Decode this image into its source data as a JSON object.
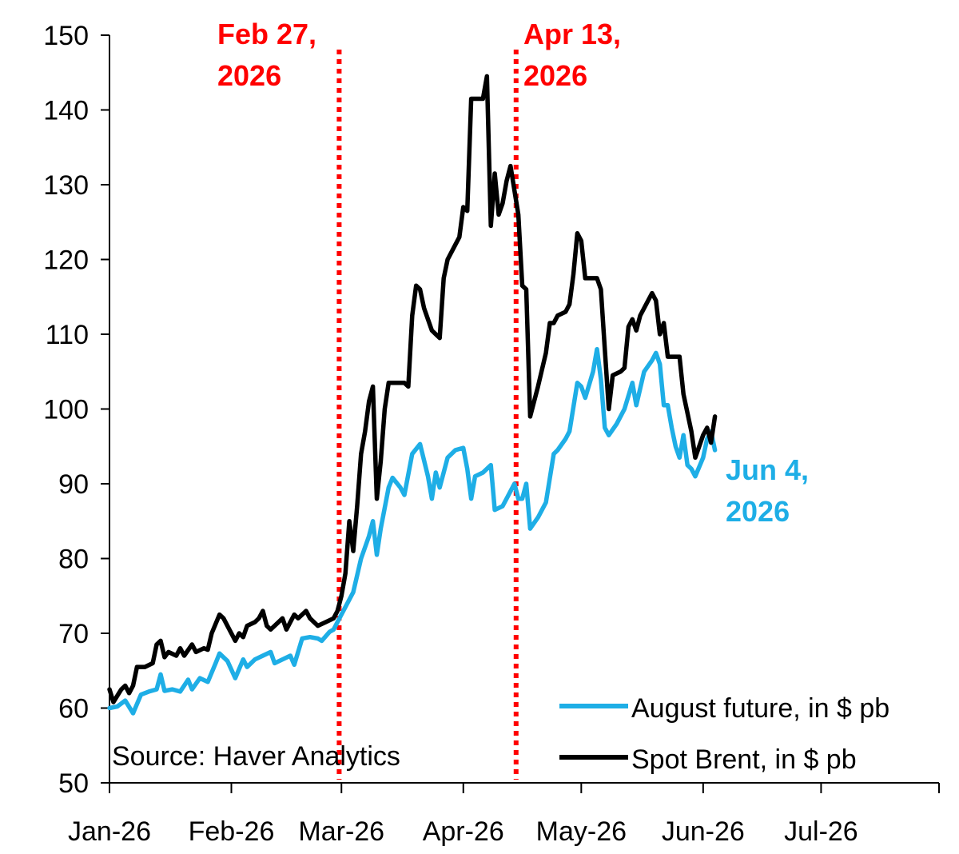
{
  "chart_data": {
    "type": "line",
    "title": "",
    "xlabel": "",
    "ylabel": "",
    "ylim": [
      50,
      150
    ],
    "yticks": [
      50,
      60,
      70,
      80,
      90,
      100,
      110,
      120,
      130,
      140,
      150
    ],
    "xlim": [
      "2026-01-01",
      "2026-07-31"
    ],
    "xticks": [
      {
        "date": "2026-01-01",
        "label": "Jan-26"
      },
      {
        "date": "2026-02-01",
        "label": "Feb-26"
      },
      {
        "date": "2026-03-01",
        "label": "Mar-26"
      },
      {
        "date": "2026-04-01",
        "label": "Apr-26"
      },
      {
        "date": "2026-05-01",
        "label": "May-26"
      },
      {
        "date": "2026-06-01",
        "label": "Jun-26"
      },
      {
        "date": "2026-07-01",
        "label": "Jul-26"
      },
      {
        "date": "2026-07-31",
        "label": ""
      }
    ],
    "grid": false,
    "legend_position": "bottom-right",
    "series": [
      {
        "name": "August future, in $ pb",
        "color": "#1EAEE6",
        "points": [
          [
            "2026-01-01",
            60.0
          ],
          [
            "2026-01-03",
            60.2
          ],
          [
            "2026-01-05",
            61.0
          ],
          [
            "2026-01-07",
            59.3
          ],
          [
            "2026-01-09",
            61.8
          ],
          [
            "2026-01-11",
            62.2
          ],
          [
            "2026-01-13",
            62.5
          ],
          [
            "2026-01-14",
            64.5
          ],
          [
            "2026-01-15",
            62.3
          ],
          [
            "2026-01-17",
            62.5
          ],
          [
            "2026-01-19",
            62.2
          ],
          [
            "2026-01-21",
            63.8
          ],
          [
            "2026-01-22",
            62.5
          ],
          [
            "2026-01-24",
            64.0
          ],
          [
            "2026-01-26",
            63.5
          ],
          [
            "2026-01-28",
            66.0
          ],
          [
            "2026-01-29",
            67.3
          ],
          [
            "2026-01-31",
            66.3
          ],
          [
            "2026-02-02",
            64.0
          ],
          [
            "2026-02-04",
            66.5
          ],
          [
            "2026-02-05",
            65.5
          ],
          [
            "2026-02-07",
            66.5
          ],
          [
            "2026-02-09",
            67.0
          ],
          [
            "2026-02-11",
            67.5
          ],
          [
            "2026-02-12",
            66.0
          ],
          [
            "2026-02-14",
            66.5
          ],
          [
            "2026-02-16",
            67.0
          ],
          [
            "2026-02-17",
            65.8
          ],
          [
            "2026-02-19",
            69.3
          ],
          [
            "2026-02-21",
            69.5
          ],
          [
            "2026-02-23",
            69.3
          ],
          [
            "2026-02-24",
            69.0
          ],
          [
            "2026-02-26",
            70.2
          ],
          [
            "2026-02-27",
            70.5
          ],
          [
            "2026-03-01",
            72.5
          ],
          [
            "2026-03-03",
            74.5
          ],
          [
            "2026-03-04",
            75.5
          ],
          [
            "2026-03-06",
            80.0
          ],
          [
            "2026-03-08",
            83.0
          ],
          [
            "2026-03-09",
            85.0
          ],
          [
            "2026-03-10",
            80.5
          ],
          [
            "2026-03-11",
            84.0
          ],
          [
            "2026-03-13",
            89.5
          ],
          [
            "2026-03-14",
            90.8
          ],
          [
            "2026-03-16",
            89.5
          ],
          [
            "2026-03-17",
            88.5
          ],
          [
            "2026-03-19",
            94.0
          ],
          [
            "2026-03-21",
            95.3
          ],
          [
            "2026-03-23",
            91.0
          ],
          [
            "2026-03-24",
            88.0
          ],
          [
            "2026-03-25",
            91.5
          ],
          [
            "2026-03-26",
            89.5
          ],
          [
            "2026-03-28",
            93.5
          ],
          [
            "2026-03-30",
            94.5
          ],
          [
            "2026-04-01",
            94.8
          ],
          [
            "2026-04-02",
            92.0
          ],
          [
            "2026-04-03",
            88.0
          ],
          [
            "2026-04-04",
            91.0
          ],
          [
            "2026-04-06",
            91.5
          ],
          [
            "2026-04-08",
            92.5
          ],
          [
            "2026-04-09",
            86.5
          ],
          [
            "2026-04-11",
            87.0
          ],
          [
            "2026-04-13",
            89.0
          ],
          [
            "2026-04-14",
            90.0
          ],
          [
            "2026-04-15",
            88.0
          ],
          [
            "2026-04-16",
            88.0
          ],
          [
            "2026-04-17",
            90.0
          ],
          [
            "2026-04-18",
            84.0
          ],
          [
            "2026-04-20",
            85.5
          ],
          [
            "2026-04-22",
            87.5
          ],
          [
            "2026-04-24",
            94.0
          ],
          [
            "2026-04-25",
            94.5
          ],
          [
            "2026-04-27",
            96.0
          ],
          [
            "2026-04-28",
            97.0
          ],
          [
            "2026-04-30",
            103.5
          ],
          [
            "2026-05-01",
            103.0
          ],
          [
            "2026-05-02",
            101.5
          ],
          [
            "2026-05-04",
            105.0
          ],
          [
            "2026-05-05",
            108.0
          ],
          [
            "2026-05-06",
            104.0
          ],
          [
            "2026-05-07",
            97.5
          ],
          [
            "2026-05-08",
            96.5
          ],
          [
            "2026-05-10",
            98.0
          ],
          [
            "2026-05-12",
            100.0
          ],
          [
            "2026-05-14",
            103.5
          ],
          [
            "2026-05-15",
            100.5
          ],
          [
            "2026-05-17",
            105.0
          ],
          [
            "2026-05-19",
            106.5
          ],
          [
            "2026-05-20",
            107.5
          ],
          [
            "2026-05-21",
            106.0
          ],
          [
            "2026-05-22",
            100.5
          ],
          [
            "2026-05-23",
            100.5
          ],
          [
            "2026-05-24",
            97.5
          ],
          [
            "2026-05-25",
            95.0
          ],
          [
            "2026-05-26",
            93.5
          ],
          [
            "2026-05-27",
            96.5
          ],
          [
            "2026-05-28",
            92.5
          ],
          [
            "2026-05-29",
            92.0
          ],
          [
            "2026-05-30",
            91.0
          ],
          [
            "2026-06-01",
            93.5
          ],
          [
            "2026-06-02",
            96.0
          ],
          [
            "2026-06-03",
            97.0
          ],
          [
            "2026-06-04",
            94.5
          ]
        ]
      },
      {
        "name": "Spot Brent, in $ pb",
        "color": "#000000",
        "points": [
          [
            "2026-01-01",
            62.5
          ],
          [
            "2026-01-02",
            60.8
          ],
          [
            "2026-01-04",
            62.5
          ],
          [
            "2026-01-05",
            63.0
          ],
          [
            "2026-01-06",
            62.0
          ],
          [
            "2026-01-07",
            63.0
          ],
          [
            "2026-01-08",
            65.5
          ],
          [
            "2026-01-10",
            65.5
          ],
          [
            "2026-01-12",
            66.0
          ],
          [
            "2026-01-13",
            68.5
          ],
          [
            "2026-01-14",
            69.0
          ],
          [
            "2026-01-15",
            66.8
          ],
          [
            "2026-01-16",
            67.5
          ],
          [
            "2026-01-18",
            67.0
          ],
          [
            "2026-01-19",
            68.0
          ],
          [
            "2026-01-20",
            67.0
          ],
          [
            "2026-01-22",
            68.5
          ],
          [
            "2026-01-23",
            67.5
          ],
          [
            "2026-01-25",
            68.0
          ],
          [
            "2026-01-26",
            67.8
          ],
          [
            "2026-01-27",
            70.0
          ],
          [
            "2026-01-29",
            72.5
          ],
          [
            "2026-01-30",
            72.0
          ],
          [
            "2026-02-01",
            70.0
          ],
          [
            "2026-02-02",
            69.0
          ],
          [
            "2026-02-03",
            70.0
          ],
          [
            "2026-02-04",
            69.5
          ],
          [
            "2026-02-05",
            71.0
          ],
          [
            "2026-02-07",
            71.5
          ],
          [
            "2026-02-08",
            72.0
          ],
          [
            "2026-02-09",
            73.0
          ],
          [
            "2026-02-10",
            71.0
          ],
          [
            "2026-02-11",
            70.5
          ],
          [
            "2026-02-13",
            71.5
          ],
          [
            "2026-02-14",
            72.0
          ],
          [
            "2026-02-15",
            70.5
          ],
          [
            "2026-02-17",
            72.5
          ],
          [
            "2026-02-18",
            72.0
          ],
          [
            "2026-02-20",
            73.0
          ],
          [
            "2026-02-21",
            72.0
          ],
          [
            "2026-02-23",
            71.0
          ],
          [
            "2026-02-25",
            71.5
          ],
          [
            "2026-02-27",
            72.0
          ],
          [
            "2026-02-28",
            73.0
          ],
          [
            "2026-03-01",
            75.0
          ],
          [
            "2026-03-02",
            78.0
          ],
          [
            "2026-03-03",
            85.0
          ],
          [
            "2026-03-04",
            81.0
          ],
          [
            "2026-03-05",
            87.0
          ],
          [
            "2026-03-06",
            94.0
          ],
          [
            "2026-03-07",
            97.0
          ],
          [
            "2026-03-08",
            101.0
          ],
          [
            "2026-03-09",
            103.0
          ],
          [
            "2026-03-10",
            88.0
          ],
          [
            "2026-03-11",
            93.0
          ],
          [
            "2026-03-12",
            100.0
          ],
          [
            "2026-03-13",
            103.5
          ],
          [
            "2026-03-15",
            103.5
          ],
          [
            "2026-03-17",
            103.5
          ],
          [
            "2026-03-18",
            103.0
          ],
          [
            "2026-03-19",
            112.5
          ],
          [
            "2026-03-20",
            116.5
          ],
          [
            "2026-03-21",
            116.0
          ],
          [
            "2026-03-22",
            113.5
          ],
          [
            "2026-03-24",
            110.5
          ],
          [
            "2026-03-25",
            110.0
          ],
          [
            "2026-03-26",
            109.5
          ],
          [
            "2026-03-27",
            117.5
          ],
          [
            "2026-03-28",
            120.0
          ],
          [
            "2026-03-30",
            122.0
          ],
          [
            "2026-03-31",
            123.0
          ],
          [
            "2026-04-01",
            127.0
          ],
          [
            "2026-04-02",
            126.5
          ],
          [
            "2026-04-03",
            141.5
          ],
          [
            "2026-04-05",
            141.5
          ],
          [
            "2026-04-06",
            141.5
          ],
          [
            "2026-04-07",
            144.5
          ],
          [
            "2026-04-08",
            124.5
          ],
          [
            "2026-04-09",
            131.5
          ],
          [
            "2026-04-10",
            126.0
          ],
          [
            "2026-04-11",
            127.5
          ],
          [
            "2026-04-12",
            130.5
          ],
          [
            "2026-04-13",
            132.5
          ],
          [
            "2026-04-15",
            126.0
          ],
          [
            "2026-04-16",
            116.5
          ],
          [
            "2026-04-17",
            116.0
          ],
          [
            "2026-04-18",
            99.0
          ],
          [
            "2026-04-20",
            103.0
          ],
          [
            "2026-04-22",
            107.5
          ],
          [
            "2026-04-23",
            111.5
          ],
          [
            "2026-04-24",
            111.5
          ],
          [
            "2026-04-25",
            112.5
          ],
          [
            "2026-04-27",
            113.0
          ],
          [
            "2026-04-28",
            114.0
          ],
          [
            "2026-04-29",
            118.0
          ],
          [
            "2026-04-30",
            123.5
          ],
          [
            "2026-05-01",
            122.5
          ],
          [
            "2026-05-02",
            117.5
          ],
          [
            "2026-05-04",
            117.5
          ],
          [
            "2026-05-05",
            117.5
          ],
          [
            "2026-05-06",
            116.0
          ],
          [
            "2026-05-07",
            108.0
          ],
          [
            "2026-05-08",
            100.0
          ],
          [
            "2026-05-09",
            104.5
          ],
          [
            "2026-05-11",
            105.0
          ],
          [
            "2026-05-12",
            105.5
          ],
          [
            "2026-05-13",
            111.0
          ],
          [
            "2026-05-14",
            112.0
          ],
          [
            "2026-05-15",
            110.5
          ],
          [
            "2026-05-16",
            112.5
          ],
          [
            "2026-05-18",
            114.5
          ],
          [
            "2026-05-19",
            115.5
          ],
          [
            "2026-05-20",
            114.5
          ],
          [
            "2026-05-21",
            110.0
          ],
          [
            "2026-05-22",
            111.5
          ],
          [
            "2026-05-23",
            107.0
          ],
          [
            "2026-05-25",
            107.0
          ],
          [
            "2026-05-26",
            107.0
          ],
          [
            "2026-05-27",
            102.0
          ],
          [
            "2026-05-29",
            97.0
          ],
          [
            "2026-05-30",
            93.5
          ],
          [
            "2026-05-31",
            95.0
          ],
          [
            "2026-06-01",
            96.5
          ],
          [
            "2026-06-02",
            97.5
          ],
          [
            "2026-06-03",
            95.5
          ],
          [
            "2026-06-04",
            99.0
          ]
        ]
      }
    ],
    "event_lines": [
      {
        "date": "2026-02-27",
        "label_line1": "Feb 27,",
        "label_line2": "2026",
        "color": "#FF0000"
      },
      {
        "date": "2026-04-13",
        "label_line1": "Apr 13,",
        "label_line2": "2026",
        "color": "#FF0000"
      }
    ],
    "end_annotation": {
      "label_line1": "Jun 4,",
      "label_line2": "2026",
      "color": "#1EAEE6"
    },
    "source": "Source: Haver Analytics"
  }
}
